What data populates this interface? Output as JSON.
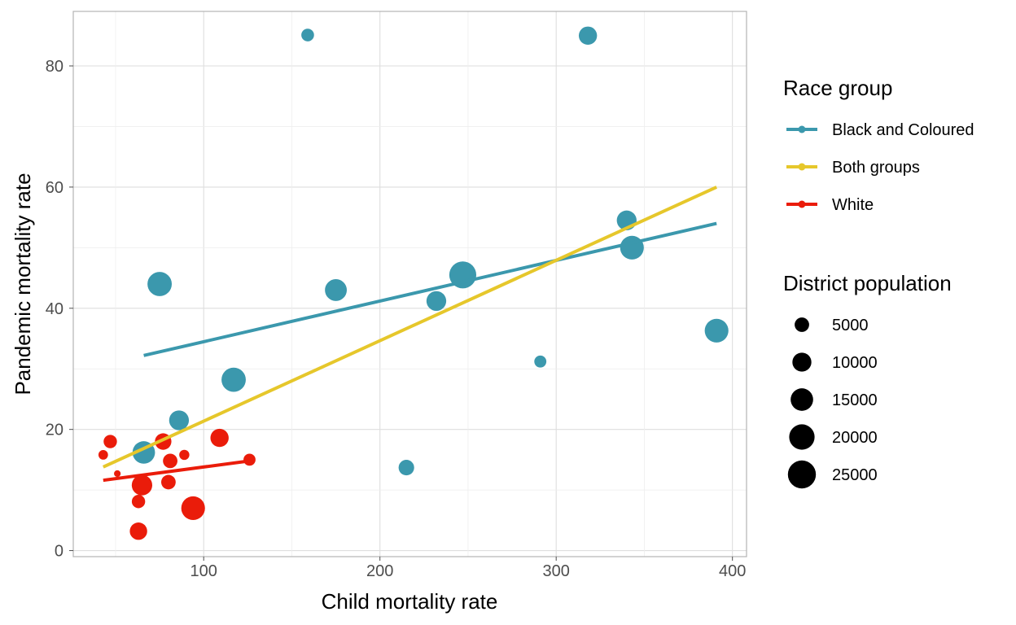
{
  "chart_data": {
    "type": "scatter",
    "title": "",
    "xlabel": "Child mortality rate",
    "ylabel": "Pandemic mortality rate",
    "xlim": [
      26,
      408
    ],
    "ylim": [
      -1,
      89
    ],
    "xticks": [
      100,
      200,
      300,
      400
    ],
    "yticks": [
      0,
      20,
      40,
      60,
      80
    ],
    "grid": true,
    "colors": {
      "Black and Coloured": "#3b98ad",
      "Both groups": "#e6c72b",
      "White": "#ea1c0a"
    },
    "series": [
      {
        "name": "Black and Coloured",
        "points": [
          {
            "x": 159,
            "y": 85.1,
            "size": 3500
          },
          {
            "x": 318,
            "y": 85.0,
            "size": 9000
          },
          {
            "x": 340,
            "y": 54.5,
            "size": 11000
          },
          {
            "x": 343,
            "y": 50.0,
            "size": 17000
          },
          {
            "x": 75,
            "y": 44.0,
            "size": 18000
          },
          {
            "x": 175,
            "y": 43.0,
            "size": 14000
          },
          {
            "x": 247,
            "y": 45.5,
            "size": 23000
          },
          {
            "x": 232,
            "y": 41.2,
            "size": 11000
          },
          {
            "x": 391,
            "y": 36.3,
            "size": 17000
          },
          {
            "x": 291,
            "y": 31.2,
            "size": 3000
          },
          {
            "x": 117,
            "y": 28.2,
            "size": 18000
          },
          {
            "x": 86,
            "y": 21.5,
            "size": 11000
          },
          {
            "x": 66,
            "y": 16.2,
            "size": 15000
          },
          {
            "x": 215,
            "y": 13.7,
            "size": 6000
          }
        ]
      },
      {
        "name": "White",
        "points": [
          {
            "x": 47,
            "y": 18.0,
            "size": 4000
          },
          {
            "x": 43,
            "y": 15.8,
            "size": 1500
          },
          {
            "x": 51,
            "y": 12.7,
            "size": 400
          },
          {
            "x": 77,
            "y": 18.0,
            "size": 7000
          },
          {
            "x": 89,
            "y": 15.8,
            "size": 1800
          },
          {
            "x": 109,
            "y": 18.6,
            "size": 9000
          },
          {
            "x": 81,
            "y": 14.8,
            "size": 5000
          },
          {
            "x": 126,
            "y": 15.0,
            "size": 3000
          },
          {
            "x": 65,
            "y": 10.8,
            "size": 12000
          },
          {
            "x": 80,
            "y": 11.3,
            "size": 5000
          },
          {
            "x": 63,
            "y": 8.1,
            "size": 4000
          },
          {
            "x": 94,
            "y": 7.0,
            "size": 17000
          },
          {
            "x": 63,
            "y": 3.2,
            "size": 8000
          }
        ]
      }
    ],
    "trend_lines": [
      {
        "name": "Black and Coloured",
        "x": [
          66,
          391
        ],
        "y": [
          32.2,
          54.0
        ]
      },
      {
        "name": "Both groups",
        "x": [
          43,
          391
        ],
        "y": [
          13.8,
          60.0
        ]
      },
      {
        "name": "White",
        "x": [
          43,
          126
        ],
        "y": [
          11.6,
          14.8
        ]
      }
    ],
    "legend": {
      "color_title": "Race group",
      "color_entries": [
        "Black and Coloured",
        "Both groups",
        "White"
      ],
      "size_title": "District population",
      "size_entries": [
        5000,
        10000,
        15000,
        20000,
        25000
      ],
      "placement": "right"
    }
  }
}
